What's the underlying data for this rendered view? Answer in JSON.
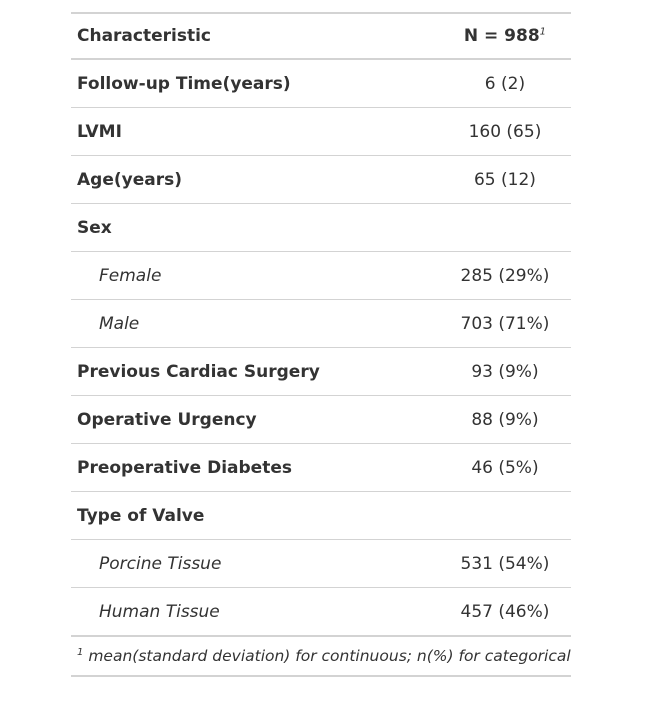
{
  "table": {
    "header": {
      "characteristic": "Characteristic",
      "n_label": "N = 988",
      "n_footnote_marker": "1"
    },
    "rows": [
      {
        "label": "Follow-up Time(years)",
        "value": "6 (2)"
      },
      {
        "label": "LVMI",
        "value": "160 (65)"
      },
      {
        "label": "Age(years)",
        "value": "65 (12)"
      },
      {
        "label": "Sex",
        "value": ""
      },
      {
        "label": "Female",
        "value": "285 (29%)"
      },
      {
        "label": "Male",
        "value": "703 (71%)"
      },
      {
        "label": "Previous Cardiac Surgery",
        "value": "93 (9%)"
      },
      {
        "label": "Operative Urgency",
        "value": "88 (9%)"
      },
      {
        "label": "Preoperative Diabetes",
        "value": "46 (5%)"
      },
      {
        "label": "Type of Valve",
        "value": ""
      },
      {
        "label": "Porcine Tissue",
        "value": "531 (54%)"
      },
      {
        "label": "Human Tissue",
        "value": "457 (46%)"
      }
    ],
    "footnote": {
      "marker": "1",
      "text": "mean(standard deviation) for continuous; n(%) for categorical"
    }
  }
}
